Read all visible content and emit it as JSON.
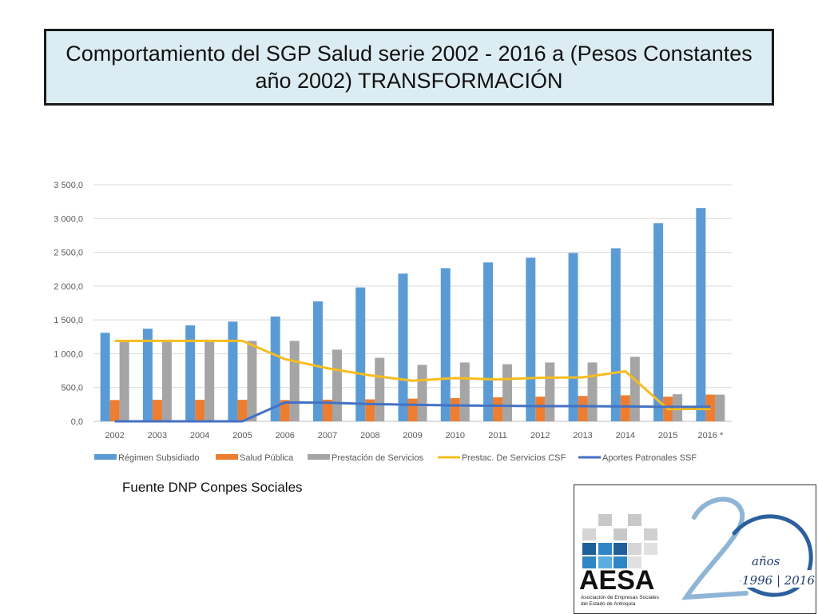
{
  "page": {
    "title": "Comportamiento del SGP Salud serie  2002 - 2016 a (Pesos Constantes año 2002) TRANSFORMACIÓN",
    "source": "Fuente DNP Conpes Sociales"
  },
  "chart_data": {
    "type": "bar",
    "categories": [
      "2002",
      "2003",
      "2004",
      "2005",
      "2006",
      "2007",
      "2008",
      "2009",
      "2010",
      "2011",
      "2012",
      "2013",
      "2014",
      "2015",
      "2016 *"
    ],
    "y_ticks": [
      "0,0",
      "500,0",
      "1 000,0",
      "1 500,0",
      "2 000,0",
      "2 500,0",
      "3 000,0",
      "3 500,0"
    ],
    "ylim": [
      0,
      3500
    ],
    "grid": true,
    "legend_position": "bottom",
    "series": [
      {
        "name": "Régimen Subsidiado",
        "type": "bar",
        "color": "#5b9bd5",
        "values": [
          1310,
          1370,
          1420,
          1475,
          1550,
          1775,
          1980,
          2185,
          2265,
          2350,
          2420,
          2490,
          2560,
          2930,
          3155
        ]
      },
      {
        "name": "Salud Pública",
        "type": "bar",
        "color": "#ed7d31",
        "values": [
          315,
          318,
          318,
          318,
          315,
          320,
          325,
          335,
          345,
          355,
          365,
          375,
          385,
          365,
          395
        ]
      },
      {
        "name": "Prestación de Servicios",
        "type": "bar",
        "color": "#a5a5a5",
        "values": [
          1190,
          1190,
          1190,
          1190,
          1190,
          1060,
          940,
          835,
          870,
          845,
          870,
          870,
          955,
          400,
          395
        ]
      },
      {
        "name": "Prestac. De Servicios CSF",
        "type": "line",
        "color": "#f5bd1f",
        "values": [
          1190,
          1190,
          1190,
          1190,
          920,
          785,
          680,
          600,
          640,
          620,
          645,
          650,
          740,
          180,
          185
        ]
      },
      {
        "name": "Aportes Patronales SSF",
        "type": "line",
        "color": "#4472c4",
        "values": [
          0,
          0,
          0,
          0,
          280,
          275,
          255,
          245,
          235,
          230,
          225,
          225,
          220,
          215,
          215
        ]
      }
    ]
  },
  "logo": {
    "brand": "AESA",
    "subtitle_line1": "Asociación de Empresas Sociales",
    "subtitle_line2": "del Estado de Antioquia",
    "years_word": "años",
    "years_range": "1996 | 2016",
    "number": "20"
  }
}
